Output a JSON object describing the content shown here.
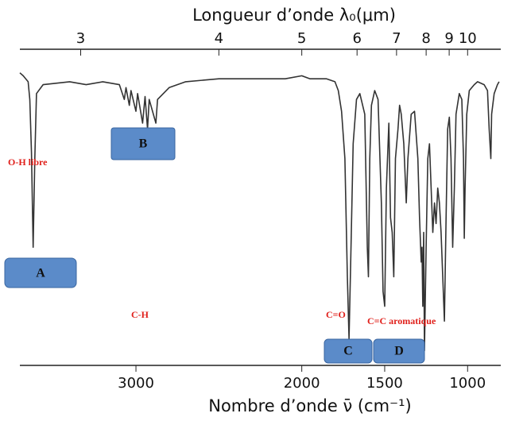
{
  "chart_data": {
    "type": "line",
    "x_label": "Nombre d’onde ν̄ (cm⁻¹)",
    "x2_label": "Longueur d’onde λ₀(μm)",
    "xlim": [
      3700,
      800
    ],
    "ylim": [
      0,
      100
    ],
    "xticks": [
      3000,
      2000,
      1500,
      1000
    ],
    "x2ticks": [
      3,
      4,
      5,
      6,
      7,
      8,
      9,
      10
    ],
    "color": "#333333",
    "x": [
      3700,
      3680,
      3650,
      3640,
      3630,
      3620,
      3610,
      3600,
      3560,
      3400,
      3300,
      3200,
      3100,
      3070,
      3060,
      3040,
      3030,
      3000,
      2990,
      2960,
      2945,
      2930,
      2920,
      2880,
      2870,
      2800,
      2700,
      2500,
      2300,
      2100,
      2000,
      1950,
      1850,
      1800,
      1780,
      1760,
      1740,
      1725,
      1715,
      1705,
      1690,
      1670,
      1650,
      1620,
      1605,
      1598,
      1590,
      1580,
      1560,
      1540,
      1520,
      1510,
      1500,
      1490,
      1475,
      1465,
      1455,
      1445,
      1435,
      1420,
      1410,
      1400,
      1385,
      1370,
      1360,
      1340,
      1320,
      1300,
      1290,
      1280,
      1275,
      1270,
      1265,
      1260,
      1250,
      1240,
      1230,
      1220,
      1210,
      1200,
      1190,
      1180,
      1170,
      1160,
      1150,
      1140,
      1130,
      1120,
      1110,
      1100,
      1090,
      1080,
      1070,
      1050,
      1035,
      1025,
      1020,
      1015,
      1005,
      990,
      960,
      940,
      900,
      880,
      870,
      860,
      855,
      840,
      820,
      810
    ],
    "values": [
      99,
      98,
      96,
      90,
      72,
      40,
      70,
      92,
      95,
      96,
      95,
      96,
      95,
      90,
      94,
      88,
      93,
      86,
      92,
      82,
      91,
      80,
      90,
      82,
      90,
      94,
      96,
      97,
      97,
      97,
      98,
      97,
      97,
      96,
      93,
      86,
      70,
      30,
      9,
      35,
      75,
      90,
      92,
      85,
      40,
      30,
      70,
      88,
      93,
      90,
      55,
      25,
      20,
      60,
      82,
      50,
      45,
      30,
      70,
      80,
      88,
      85,
      75,
      55,
      70,
      85,
      86,
      70,
      50,
      35,
      40,
      20,
      45,
      5,
      40,
      70,
      75,
      60,
      45,
      55,
      48,
      60,
      55,
      45,
      30,
      15,
      50,
      80,
      84,
      70,
      40,
      60,
      85,
      92,
      90,
      70,
      43,
      60,
      85,
      93,
      95,
      96,
      95,
      93,
      80,
      70,
      85,
      92,
      95,
      96
    ],
    "annotations": [
      "O-H libre",
      "C-H",
      "C=O",
      "C=C aromatique"
    ],
    "boxes": [
      "A",
      "B",
      "C",
      "D"
    ]
  }
}
